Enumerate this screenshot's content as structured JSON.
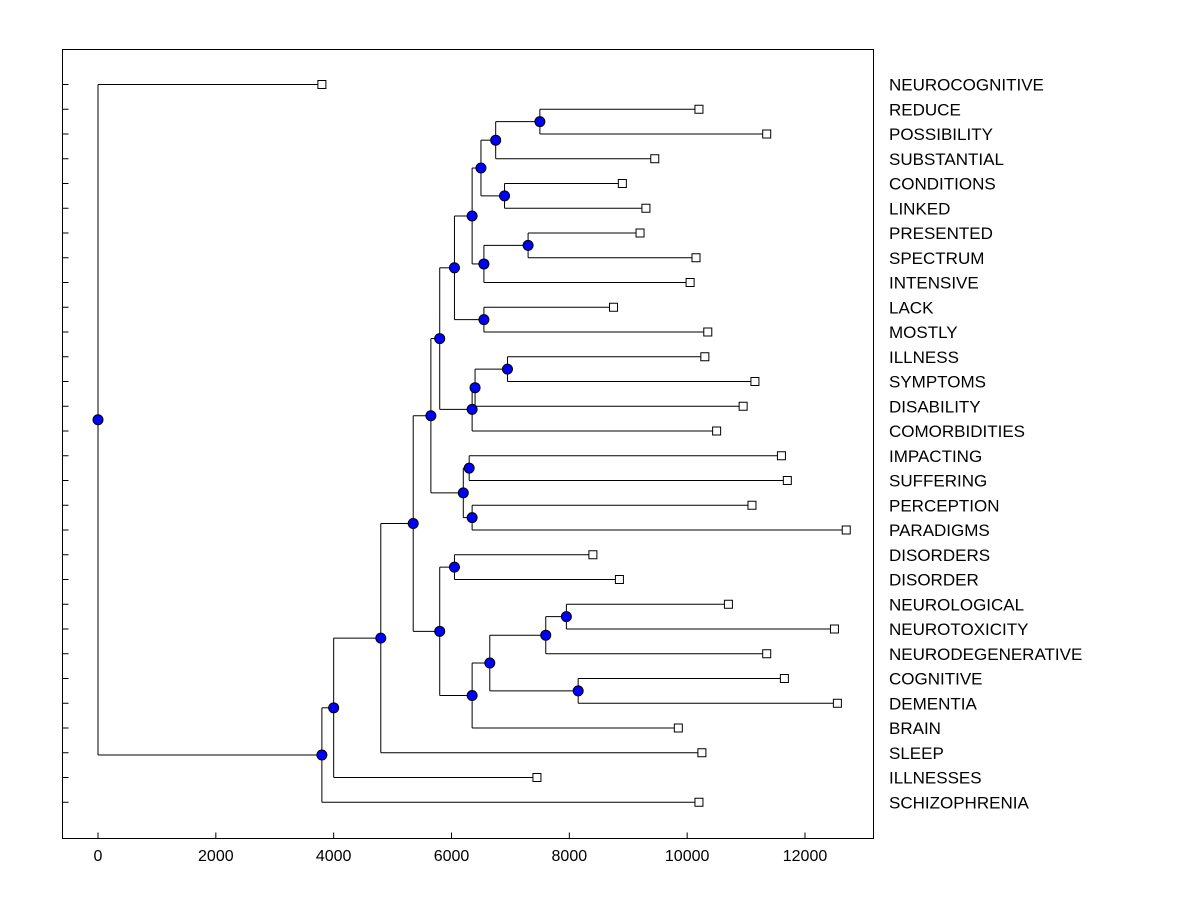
{
  "chart_data": {
    "type": "dendrogram",
    "orientation": "horizontal",
    "title": "",
    "xlabel": "",
    "ylabel": "",
    "xlim": [
      -600,
      13200
    ],
    "x_ticks": [
      0,
      2000,
      4000,
      6000,
      8000,
      10000,
      12000
    ],
    "colors": {
      "node_fill": "#0000ff",
      "line": "#000000",
      "leaf_fill": "#ffffff"
    },
    "leaves": [
      {
        "label": "NEUROCOGNITIVE",
        "x": 3800
      },
      {
        "label": "REDUCE",
        "x": 10200
      },
      {
        "label": "POSSIBILITY",
        "x": 11350
      },
      {
        "label": "SUBSTANTIAL",
        "x": 9450
      },
      {
        "label": "CONDITIONS",
        "x": 8900
      },
      {
        "label": "LINKED",
        "x": 9300
      },
      {
        "label": "PRESENTED",
        "x": 9200
      },
      {
        "label": "SPECTRUM",
        "x": 10150
      },
      {
        "label": "INTENSIVE",
        "x": 10050
      },
      {
        "label": "LACK",
        "x": 8750
      },
      {
        "label": "MOSTLY",
        "x": 10350
      },
      {
        "label": "ILLNESS",
        "x": 10300
      },
      {
        "label": "SYMPTOMS",
        "x": 11150
      },
      {
        "label": "DISABILITY",
        "x": 10950
      },
      {
        "label": "COMORBIDITIES",
        "x": 10500
      },
      {
        "label": "IMPACTING",
        "x": 11600
      },
      {
        "label": "SUFFERING",
        "x": 11700
      },
      {
        "label": "PERCEPTION",
        "x": 11100
      },
      {
        "label": "PARADIGMS",
        "x": 12700
      },
      {
        "label": "DISORDERS",
        "x": 8400
      },
      {
        "label": "DISORDER",
        "x": 8850
      },
      {
        "label": "NEUROLOGICAL",
        "x": 10700
      },
      {
        "label": "NEUROTOXICITY",
        "x": 12500
      },
      {
        "label": "NEURODEGENERATIVE",
        "x": 11350
      },
      {
        "label": "COGNITIVE",
        "x": 11650
      },
      {
        "label": "DEMENTIA",
        "x": 12550
      },
      {
        "label": "BRAIN",
        "x": 9850
      },
      {
        "label": "SLEEP",
        "x": 10250
      },
      {
        "label": "ILLNESSES",
        "x": 7450
      },
      {
        "label": "SCHIZOPHRENIA",
        "x": 10200
      }
    ],
    "merges": [
      {
        "id": "m1",
        "height": 7500,
        "children": [
          "REDUCE",
          "POSSIBILITY"
        ]
      },
      {
        "id": "m2",
        "height": 6750,
        "children": [
          "m1",
          "SUBSTANTIAL"
        ]
      },
      {
        "id": "m3",
        "height": 6900,
        "children": [
          "CONDITIONS",
          "LINKED"
        ]
      },
      {
        "id": "m4",
        "height": 6500,
        "children": [
          "m2",
          "m3"
        ]
      },
      {
        "id": "m5",
        "height": 7300,
        "children": [
          "PRESENTED",
          "SPECTRUM"
        ]
      },
      {
        "id": "m6",
        "height": 6550,
        "children": [
          "m5",
          "INTENSIVE"
        ]
      },
      {
        "id": "m7",
        "height": 6350,
        "children": [
          "m4",
          "m6"
        ]
      },
      {
        "id": "m8",
        "height": 6550,
        "children": [
          "LACK",
          "MOSTLY"
        ]
      },
      {
        "id": "m9",
        "height": 6050,
        "children": [
          "m7",
          "m8"
        ]
      },
      {
        "id": "m10",
        "height": 6950,
        "children": [
          "ILLNESS",
          "SYMPTOMS"
        ]
      },
      {
        "id": "m11",
        "height": 6400,
        "children": [
          "m10",
          "DISABILITY"
        ]
      },
      {
        "id": "m12",
        "height": 6350,
        "children": [
          "m11",
          "COMORBIDITIES"
        ]
      },
      {
        "id": "m13",
        "height": 5800,
        "children": [
          "m9",
          "m12"
        ]
      },
      {
        "id": "m14",
        "height": 6300,
        "children": [
          "IMPACTING",
          "SUFFERING"
        ]
      },
      {
        "id": "m15",
        "height": 6350,
        "children": [
          "PERCEPTION",
          "PARADIGMS"
        ]
      },
      {
        "id": "m16",
        "height": 6200,
        "children": [
          "m14",
          "m15"
        ]
      },
      {
        "id": "m17",
        "height": 5650,
        "children": [
          "m13",
          "m16"
        ]
      },
      {
        "id": "m18",
        "height": 6050,
        "children": [
          "DISORDERS",
          "DISORDER"
        ]
      },
      {
        "id": "m19",
        "height": 7950,
        "children": [
          "NEUROLOGICAL",
          "NEUROTOXICITY"
        ]
      },
      {
        "id": "m20",
        "height": 7600,
        "children": [
          "m19",
          "NEURODEGENERATIVE"
        ]
      },
      {
        "id": "m21",
        "height": 8150,
        "children": [
          "COGNITIVE",
          "DEMENTIA"
        ]
      },
      {
        "id": "m22",
        "height": 6650,
        "children": [
          "m20",
          "m21"
        ]
      },
      {
        "id": "m23",
        "height": 6350,
        "children": [
          "m22",
          "BRAIN"
        ]
      },
      {
        "id": "m24",
        "height": 5800,
        "children": [
          "m18",
          "m23"
        ]
      },
      {
        "id": "m25",
        "height": 5350,
        "children": [
          "m17",
          "m24"
        ]
      },
      {
        "id": "m26",
        "height": 4800,
        "children": [
          "m25",
          "SLEEP"
        ]
      },
      {
        "id": "m27",
        "height": 4000,
        "children": [
          "m26",
          "ILLNESSES"
        ]
      },
      {
        "id": "m28",
        "height": 3800,
        "children": [
          "m27",
          "SCHIZOPHRENIA"
        ]
      },
      {
        "id": "m29",
        "height": 0,
        "children": [
          "NEUROCOGNITIVE",
          "m28"
        ]
      }
    ]
  }
}
